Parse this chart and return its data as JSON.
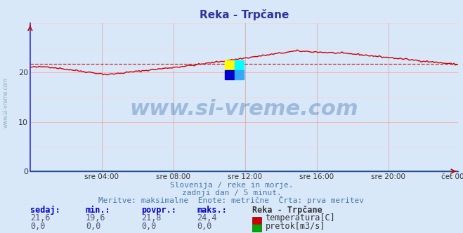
{
  "title": "Reka - Trpčane",
  "background_color": "#d8e8f8",
  "plot_bg_color": "#d8e8f8",
  "grid_color_h": "#ffaaaa",
  "grid_color_v": "#ddaaaa",
  "x_labels": [
    "sre 04:00",
    "sre 08:00",
    "sre 12:00",
    "sre 16:00",
    "sre 20:00",
    "čet 00:00"
  ],
  "x_ticks": [
    48,
    96,
    144,
    192,
    240,
    287
  ],
  "ylim": [
    0,
    30
  ],
  "yticks": [
    0,
    10,
    20
  ],
  "temp_color": "#cc0000",
  "avg_color": "#cc0000",
  "flow_color": "#00aa00",
  "spine_color": "#3333cc",
  "watermark_text": "www.si-vreme.com",
  "watermark_color": "#3366aa",
  "watermark_alpha": 0.35,
  "watermark_fontsize": 22,
  "ylabel_text": "www.si-vreme.com",
  "subtitle1": "Slovenija / reke in morje.",
  "subtitle2": "zadnji dan / 5 minut.",
  "subtitle3": "Meritve: maksimalne  Enote: metrične  Črta: prva meritev",
  "subtitle_color": "#4477aa",
  "footer_label_color": "#0000cc",
  "footer_value_color": "#555577",
  "sedaj": "21,6",
  "min_val": "19,6",
  "povpr": "21,8",
  "maks": "24,4",
  "station_name": "Reka - Trpčane",
  "legend_temp": "temperatura[C]",
  "legend_flow": "pretok[m3/s]",
  "sedaj2": "0,0",
  "min2": "0,0",
  "povpr2": "0,0",
  "maks2": "0,0",
  "n_points": 288,
  "avg_value": 21.8,
  "title_color": "#333399",
  "title_fontsize": 11
}
